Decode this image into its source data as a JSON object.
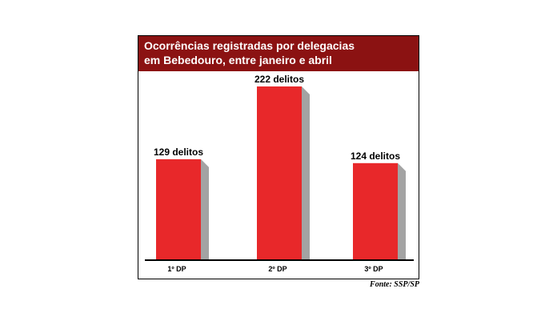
{
  "header": {
    "title_line1": "Ocorrências registradas por delegacias",
    "title_line2": "em Bebedouro, entre janeiro e abril"
  },
  "source": "Fonte: SSP/SP",
  "colors": {
    "header_bg": "#8b1212",
    "bar": "#e8282a",
    "bar_shadow": "#a3a3a3"
  },
  "chart_data": {
    "type": "bar",
    "title": "Ocorrências registradas por delegacias em Bebedouro, entre janeiro e abril",
    "categories": [
      "1º DP",
      "2º DP",
      "3º DP"
    ],
    "values": [
      129,
      222,
      124
    ],
    "data_labels": [
      "129 delitos",
      "222 delitos",
      "124 delitos"
    ],
    "xlabel": "",
    "ylabel": "",
    "ylim": [
      0,
      222
    ],
    "grid": false
  }
}
